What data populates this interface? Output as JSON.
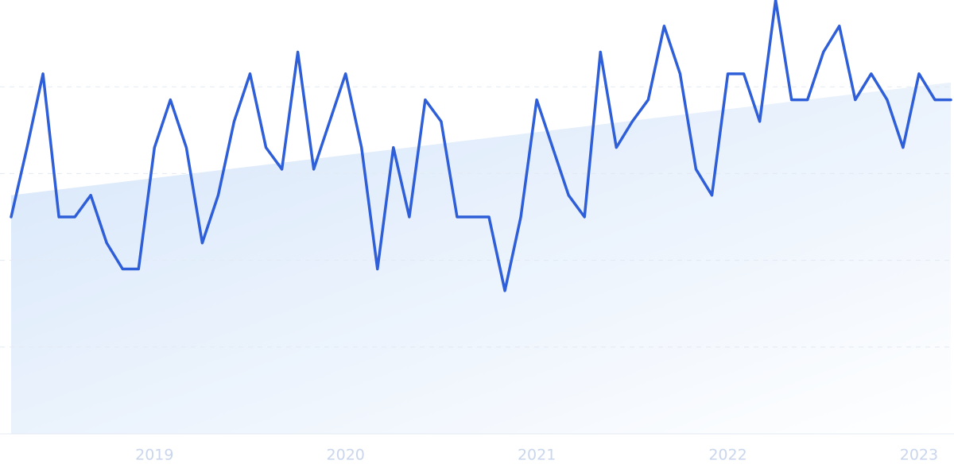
{
  "chart_data": {
    "type": "line",
    "categories": [
      null,
      null,
      null,
      null,
      null,
      null,
      null,
      null,
      null,
      "2019",
      null,
      null,
      null,
      null,
      null,
      null,
      null,
      null,
      null,
      null,
      null,
      "2020",
      null,
      null,
      null,
      null,
      null,
      null,
      null,
      null,
      null,
      null,
      null,
      "2021",
      null,
      null,
      null,
      null,
      null,
      null,
      null,
      null,
      null,
      null,
      null,
      "2022",
      null,
      null,
      null,
      null,
      null,
      null,
      null,
      null,
      null,
      null,
      null,
      "2023",
      null,
      null
    ],
    "values": [
      50,
      66,
      83,
      50,
      50,
      55,
      44,
      38,
      38,
      66,
      77,
      66,
      44,
      55,
      72,
      83,
      66,
      61,
      88,
      61,
      72,
      83,
      66,
      38,
      66,
      50,
      77,
      72,
      50,
      50,
      50,
      33,
      50,
      77,
      66,
      55,
      50,
      88,
      66,
      72,
      77,
      94,
      83,
      61,
      55,
      83,
      83,
      72,
      100,
      77,
      77,
      88,
      94,
      77,
      83,
      77,
      66,
      83,
      77,
      77
    ],
    "color": "#2f5fd8",
    "trend": {
      "start": 55,
      "end": 81,
      "color": "#d6e6fa"
    },
    "ylim": [
      0,
      100
    ],
    "ygrid": [
      0,
      20,
      40,
      60,
      80
    ]
  }
}
